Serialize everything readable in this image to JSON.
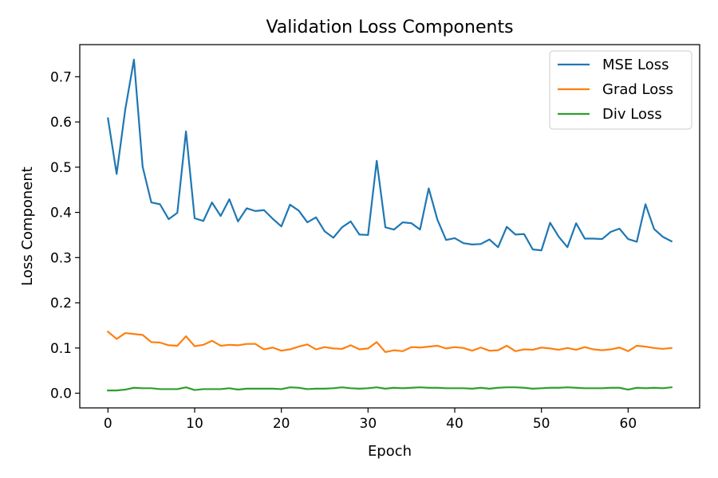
{
  "chart_data": {
    "type": "line",
    "title": "Validation Loss Components",
    "xlabel": "Epoch",
    "ylabel": "Loss Component",
    "xlim": [
      -3.25,
      68.25
    ],
    "ylim": [
      -0.0325,
      0.7711
    ],
    "xticks": [
      0,
      10,
      20,
      30,
      40,
      50,
      60
    ],
    "yticks": [
      0.0,
      0.1,
      0.2,
      0.3,
      0.4,
      0.5,
      0.6,
      0.7
    ],
    "xtick_labels": [
      "0",
      "10",
      "20",
      "30",
      "40",
      "50",
      "60"
    ],
    "ytick_labels": [
      "0.0",
      "0.1",
      "0.2",
      "0.3",
      "0.4",
      "0.5",
      "0.6",
      "0.7"
    ],
    "grid": false,
    "legend_position": "top-right",
    "x": [
      0,
      1,
      2,
      3,
      4,
      5,
      6,
      7,
      8,
      9,
      10,
      11,
      12,
      13,
      14,
      15,
      16,
      17,
      18,
      19,
      20,
      21,
      22,
      23,
      24,
      25,
      26,
      27,
      28,
      29,
      30,
      31,
      32,
      33,
      34,
      35,
      36,
      37,
      38,
      39,
      40,
      41,
      42,
      43,
      44,
      45,
      46,
      47,
      48,
      49,
      50,
      51,
      52,
      53,
      54,
      55,
      56,
      57,
      58,
      59,
      60,
      61,
      62,
      63,
      64,
      65
    ],
    "series": [
      {
        "name": "MSE Loss",
        "color": "#1f77b4",
        "values": [
          0.608,
          0.485,
          0.628,
          0.738,
          0.501,
          0.422,
          0.418,
          0.385,
          0.399,
          0.579,
          0.387,
          0.381,
          0.422,
          0.392,
          0.429,
          0.38,
          0.409,
          0.403,
          0.405,
          0.386,
          0.369,
          0.417,
          0.404,
          0.378,
          0.389,
          0.358,
          0.344,
          0.367,
          0.38,
          0.351,
          0.35,
          0.514,
          0.367,
          0.362,
          0.378,
          0.376,
          0.362,
          0.453,
          0.384,
          0.339,
          0.343,
          0.332,
          0.329,
          0.33,
          0.34,
          0.323,
          0.368,
          0.351,
          0.352,
          0.318,
          0.316,
          0.377,
          0.346,
          0.323,
          0.376,
          0.342,
          0.342,
          0.341,
          0.357,
          0.364,
          0.341,
          0.335,
          0.418,
          0.363,
          0.346,
          0.336
        ]
      },
      {
        "name": "Grad Loss",
        "color": "#ff7f0e",
        "values": [
          0.136,
          0.12,
          0.133,
          0.131,
          0.129,
          0.113,
          0.112,
          0.106,
          0.105,
          0.126,
          0.104,
          0.107,
          0.116,
          0.105,
          0.107,
          0.106,
          0.109,
          0.109,
          0.097,
          0.101,
          0.094,
          0.097,
          0.103,
          0.108,
          0.097,
          0.102,
          0.099,
          0.098,
          0.106,
          0.097,
          0.099,
          0.113,
          0.091,
          0.095,
          0.093,
          0.102,
          0.101,
          0.103,
          0.105,
          0.099,
          0.102,
          0.1,
          0.094,
          0.101,
          0.094,
          0.095,
          0.105,
          0.093,
          0.097,
          0.096,
          0.101,
          0.099,
          0.096,
          0.1,
          0.096,
          0.102,
          0.097,
          0.095,
          0.097,
          0.101,
          0.093,
          0.105,
          0.103,
          0.1,
          0.098,
          0.1
        ]
      },
      {
        "name": "Div Loss",
        "color": "#2ca02c",
        "values": [
          0.006,
          0.006,
          0.008,
          0.012,
          0.011,
          0.011,
          0.009,
          0.009,
          0.009,
          0.013,
          0.007,
          0.009,
          0.009,
          0.009,
          0.011,
          0.008,
          0.01,
          0.01,
          0.01,
          0.01,
          0.009,
          0.013,
          0.012,
          0.009,
          0.01,
          0.01,
          0.011,
          0.013,
          0.011,
          0.01,
          0.011,
          0.013,
          0.01,
          0.012,
          0.011,
          0.012,
          0.013,
          0.012,
          0.012,
          0.011,
          0.011,
          0.011,
          0.01,
          0.012,
          0.01,
          0.012,
          0.013,
          0.013,
          0.012,
          0.01,
          0.011,
          0.012,
          0.012,
          0.013,
          0.012,
          0.011,
          0.011,
          0.011,
          0.012,
          0.012,
          0.008,
          0.012,
          0.011,
          0.012,
          0.011,
          0.013
        ]
      }
    ]
  }
}
